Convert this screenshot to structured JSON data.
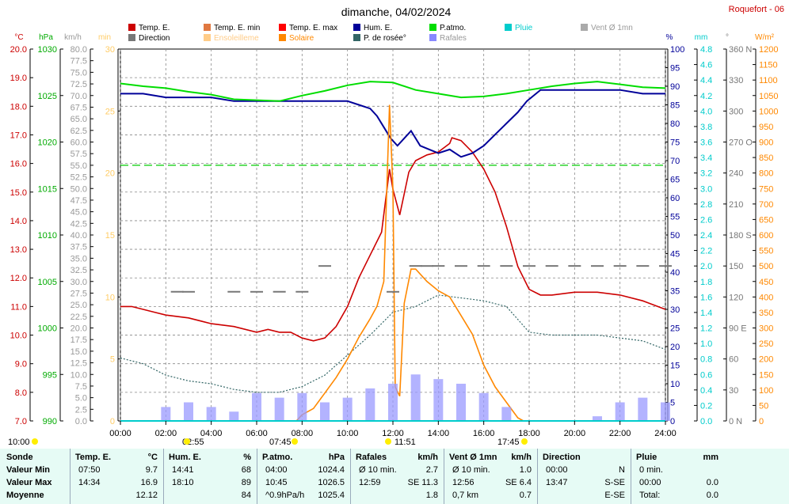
{
  "header": {
    "title": "dimanche, 04/02/2024",
    "station": "Roquefort - 06"
  },
  "legend": [
    {
      "label": "Temp. E.",
      "color": "#cc0000"
    },
    {
      "label": "Temp. E. min",
      "color": "#e07840"
    },
    {
      "label": "Temp. E. max",
      "color": "#ff0000"
    },
    {
      "label": "Hum. E.",
      "color": "#000099"
    },
    {
      "label": "P.atmo.",
      "color": "#00dd00"
    },
    {
      "label": "Pluie",
      "color": "#00cccc"
    },
    {
      "label": "Vent Ø 1mn",
      "color": "#aaaaaa"
    },
    {
      "label": "Direction",
      "color": "#777777"
    },
    {
      "label": "Ensoleilleme",
      "color": "#ffcc88"
    },
    {
      "label": "Solaire",
      "color": "#ff8800"
    },
    {
      "label": "P. de rosée°",
      "color": "#336666"
    },
    {
      "label": "Rafales",
      "color": "#8888ff"
    }
  ],
  "axes": {
    "temp": {
      "unit": "°C",
      "color": "#cc0000",
      "ticks": [
        "20.0",
        "19.0",
        "18.0",
        "17.0",
        "16.0",
        "15.0",
        "14.0",
        "13.0",
        "12.0",
        "11.0",
        "10.0",
        "9.0",
        "8.0",
        "7.0"
      ]
    },
    "pressure": {
      "unit": "hPa",
      "color": "#00aa00",
      "ticks": [
        "1030",
        "1025",
        "1020",
        "1015",
        "1010",
        "1005",
        "1000",
        "995",
        "990"
      ]
    },
    "wind": {
      "unit": "km/h",
      "color": "#999999",
      "ticks": [
        "80.0",
        "77.5",
        "75.0",
        "72.5",
        "70.0",
        "67.5",
        "65.0",
        "62.5",
        "60.0",
        "57.5",
        "55.0",
        "52.5",
        "50.0",
        "47.5",
        "45.0",
        "42.5",
        "40.0",
        "37.5",
        "35.0",
        "32.5",
        "30.0",
        "27.5",
        "25.0",
        "22.5",
        "20.0",
        "17.5",
        "15.0",
        "12.5",
        "10.0",
        "7.5",
        "5.0",
        "2.5",
        "0.0"
      ]
    },
    "minutes": {
      "unit": "min",
      "color": "#ffcc66",
      "ticks": [
        "30",
        "25",
        "20",
        "15",
        "10",
        "5",
        "0"
      ]
    },
    "humidity": {
      "unit": "%",
      "color": "#000099",
      "ticks": [
        "100",
        "95",
        "90",
        "85",
        "80",
        "75",
        "70",
        "65",
        "60",
        "55",
        "50",
        "45",
        "40",
        "35",
        "30",
        "25",
        "20",
        "15",
        "10",
        "5",
        "0"
      ]
    },
    "rain": {
      "unit": "mm",
      "color": "#00cccc",
      "ticks": [
        "4.8",
        "4.6",
        "4.4",
        "4.2",
        "4.0",
        "3.8",
        "3.6",
        "3.4",
        "3.2",
        "3.0",
        "2.8",
        "2.6",
        "2.4",
        "2.2",
        "2.0",
        "1.8",
        "1.6",
        "1.4",
        "1.2",
        "1.0",
        "0.8",
        "0.6",
        "0.4",
        "0.2",
        "0.0"
      ]
    },
    "direction": {
      "unit": "°",
      "color": "#777777",
      "ticks": [
        "360 N",
        "330",
        "300",
        "270 O",
        "240",
        "210",
        "180 S",
        "150",
        "120",
        "90 E",
        "60",
        "30",
        "0 N"
      ]
    },
    "solar": {
      "unit": "W/m²",
      "color": "#ff8800",
      "ticks": [
        "1200",
        "1150",
        "1100",
        "1050",
        "1000",
        "950",
        "900",
        "850",
        "800",
        "750",
        "700",
        "650",
        "600",
        "550",
        "500",
        "450",
        "400",
        "350",
        "300",
        "250",
        "200",
        "150",
        "100",
        "50",
        "0"
      ]
    },
    "x_ticks": [
      "00:00",
      "02:00",
      "04:00",
      "06:00",
      "08:00",
      "10:00",
      "12:00",
      "14:00",
      "16:00",
      "18:00",
      "20:00",
      "22:00",
      "24:00"
    ]
  },
  "sun_events": [
    {
      "label": "10:00"
    },
    {
      "label": "02:55"
    },
    {
      "label": "07:45"
    },
    {
      "label": "11:51"
    },
    {
      "label": "17:45"
    }
  ],
  "chart_data": {
    "type": "line",
    "x_unit": "hours",
    "xlim": [
      0,
      24
    ],
    "series": [
      {
        "name": "Temp. E.",
        "axis": "°C",
        "x": [
          0,
          0.5,
          1,
          1.5,
          2,
          3,
          4,
          5,
          6,
          6.5,
          7,
          7.5,
          8,
          8.5,
          9,
          9.5,
          10,
          10.5,
          11,
          11.5,
          11.85,
          12,
          12.3,
          12.7,
          13,
          13.5,
          14,
          14.5,
          14.6,
          15,
          15.5,
          16,
          16.5,
          17,
          17.5,
          18,
          18.5,
          19,
          20,
          21,
          22,
          23,
          24
        ],
        "values": [
          11.0,
          11.0,
          10.9,
          10.8,
          10.7,
          10.6,
          10.4,
          10.3,
          10.1,
          10.2,
          10.1,
          10.1,
          9.9,
          9.8,
          9.9,
          10.3,
          11.0,
          12.0,
          12.8,
          13.6,
          15.8,
          15.1,
          14.2,
          15.7,
          16.1,
          16.3,
          16.4,
          16.7,
          16.9,
          16.8,
          16.4,
          15.8,
          15.0,
          13.8,
          12.4,
          11.6,
          11.4,
          11.4,
          11.5,
          11.5,
          11.4,
          11.2,
          10.9
        ]
      },
      {
        "name": "Hum. E.",
        "axis": "%",
        "x": [
          0,
          1,
          2,
          3,
          4,
          5,
          6,
          7,
          8,
          9,
          10,
          10.5,
          11,
          11.3,
          11.6,
          11.9,
          12.2,
          12.5,
          12.8,
          13.2,
          13.6,
          14,
          14.5,
          15,
          15.5,
          16,
          16.5,
          17,
          17.5,
          17.9,
          18.5,
          19,
          20,
          21,
          22,
          23,
          24
        ],
        "values": [
          88,
          88,
          87,
          87,
          87,
          86,
          86,
          86,
          86,
          86,
          86,
          85,
          84,
          82,
          79,
          76,
          74,
          76,
          78,
          74,
          73,
          72,
          73,
          71,
          72,
          74,
          77,
          80,
          83,
          86,
          89,
          89,
          89,
          89,
          89,
          88,
          88
        ]
      },
      {
        "name": "P.atmo.",
        "axis": "hPa",
        "x": [
          0,
          1,
          2,
          3,
          4,
          5,
          6,
          7,
          8,
          9,
          10,
          11,
          12,
          13,
          14,
          15,
          16,
          17,
          18,
          19,
          20,
          21,
          22,
          23,
          24
        ],
        "values": [
          1026.3,
          1026.0,
          1025.8,
          1025.4,
          1025.1,
          1024.6,
          1024.5,
          1024.4,
          1025.0,
          1025.5,
          1026.1,
          1026.5,
          1026.4,
          1025.6,
          1025.2,
          1024.8,
          1024.9,
          1025.2,
          1025.6,
          1026.0,
          1026.3,
          1026.5,
          1026.2,
          1025.9,
          1025.8
        ]
      },
      {
        "name": "P. de rosée°",
        "axis": "°C",
        "x": [
          0,
          1,
          2,
          3,
          4,
          5,
          6,
          7,
          8,
          9,
          10,
          11,
          12,
          13,
          14,
          15,
          16,
          17,
          18,
          19,
          20,
          21,
          22,
          23,
          24
        ],
        "values": [
          9.2,
          9.0,
          8.6,
          8.4,
          8.3,
          8.1,
          8.0,
          8.0,
          8.2,
          8.6,
          9.3,
          10.0,
          10.8,
          11.0,
          11.4,
          11.3,
          11.2,
          11.0,
          10.1,
          10.0,
          10.0,
          10.0,
          9.9,
          9.8,
          9.5
        ]
      },
      {
        "name": "Solaire",
        "axis": "W/m²",
        "x": [
          0,
          7.75,
          8,
          8.5,
          9,
          9.5,
          10,
          10.5,
          11,
          11.3,
          11.6,
          11.85,
          12,
          12.1,
          12.3,
          12.5,
          12.8,
          13,
          13.5,
          14,
          14.5,
          15,
          15.5,
          16,
          16.5,
          17,
          17.5,
          17.75,
          24
        ],
        "values": [
          0,
          0,
          20,
          40,
          90,
          140,
          200,
          270,
          330,
          370,
          450,
          1020,
          750,
          110,
          80,
          380,
          490,
          490,
          450,
          420,
          400,
          340,
          280,
          180,
          110,
          60,
          10,
          0,
          0
        ]
      },
      {
        "name": "Rafales",
        "axis": "km/h",
        "x": [
          0,
          1,
          2,
          3,
          4,
          5,
          6,
          7,
          8,
          9,
          10,
          11,
          12,
          13,
          14,
          15,
          16,
          17,
          18,
          19,
          20,
          21,
          22,
          23,
          24
        ],
        "values": [
          0,
          0,
          3,
          4,
          3,
          2,
          6,
          5,
          6,
          4,
          5,
          7,
          8,
          10,
          9,
          8,
          6,
          3,
          0,
          0,
          0,
          1,
          4,
          5,
          4
        ]
      },
      {
        "name": "Direction",
        "axis": "°",
        "x": [
          2.5,
          3,
          5,
          6,
          7,
          8,
          9,
          12,
          13,
          13.5,
          14,
          15,
          16,
          17,
          18,
          19,
          20,
          21,
          22,
          23,
          24
        ],
        "values": [
          125,
          125,
          125,
          125,
          125,
          125,
          150,
          125,
          150,
          150,
          150,
          150,
          150,
          150,
          150,
          150,
          150,
          150,
          150,
          150,
          150
        ]
      },
      {
        "name": "Pluie",
        "axis": "mm",
        "x": [
          0,
          24
        ],
        "values": [
          0,
          0
        ]
      }
    ],
    "reference_line": {
      "axis": "hPa",
      "value": 1017.5
    }
  },
  "summary": {
    "sonde": {
      "title": "Sonde",
      "rows": [
        "Valeur Min",
        "Valeur Max",
        "Moyenne"
      ]
    },
    "temp": {
      "title": "Temp. E.",
      "unit": "°C",
      "rows": [
        [
          "07:50",
          "9.7"
        ],
        [
          "14:34",
          "16.9"
        ],
        [
          "",
          "12.12"
        ]
      ]
    },
    "hum": {
      "title": "Hum. E.",
      "unit": "%",
      "rows": [
        [
          "14:41",
          "68"
        ],
        [
          "18:10",
          "89"
        ],
        [
          "",
          "84"
        ]
      ]
    },
    "patmo": {
      "title": "P.atmo.",
      "unit": "hPa",
      "rows": [
        [
          "04:00",
          "1024.4"
        ],
        [
          "10:45",
          "1026.5"
        ],
        [
          "^0.9hPa/h",
          "1025.4"
        ]
      ]
    },
    "rafales": {
      "title": "Rafales",
      "unit": "km/h",
      "rows": [
        [
          "Ø 10 min.",
          "2.7"
        ],
        [
          "12:59",
          "SE 11.3"
        ],
        [
          "",
          "1.8"
        ]
      ]
    },
    "vent": {
      "title": "Vent Ø 1mn",
      "unit": "km/h",
      "rows": [
        [
          "Ø 10 min.",
          "1.0"
        ],
        [
          "12:56",
          "SE 6.4"
        ],
        [
          "0,7 km",
          "0.7"
        ]
      ]
    },
    "direction": {
      "title": "Direction",
      "rows": [
        [
          "00:00",
          "N"
        ],
        [
          "13:47",
          "S-SE"
        ],
        [
          "",
          "E-SE"
        ]
      ]
    },
    "pluie": {
      "title": "Pluie",
      "unit": "mm",
      "rows": [
        [
          "0 min.",
          ""
        ],
        [
          "00:00",
          "0.0"
        ],
        [
          "Total:",
          "0.0"
        ]
      ]
    }
  }
}
